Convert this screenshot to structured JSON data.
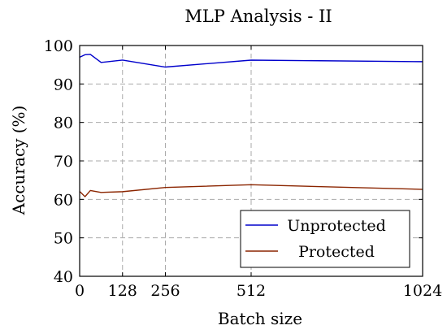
{
  "chart_data": {
    "type": "line",
    "title": "MLP Analysis - II",
    "xlabel": "Batch size",
    "ylabel": "Accuracy (%)",
    "xlim": [
      0,
      1024
    ],
    "ylim": [
      40,
      100
    ],
    "xticks": [
      0,
      128,
      256,
      512,
      1024
    ],
    "yticks": [
      40,
      50,
      60,
      70,
      80,
      90,
      100
    ],
    "grid": true,
    "legend_position": "bottom-right",
    "series": [
      {
        "name": "Unprotected",
        "color": "#0000cc",
        "x": [
          1,
          16,
          32,
          64,
          128,
          256,
          512,
          1024
        ],
        "y": [
          97.0,
          97.6,
          97.7,
          95.6,
          96.2,
          94.4,
          96.2,
          95.8
        ]
      },
      {
        "name": "Protected",
        "color": "#8b2500",
        "x": [
          1,
          16,
          32,
          64,
          128,
          256,
          512,
          1024
        ],
        "y": [
          62.0,
          60.7,
          62.3,
          61.8,
          62.0,
          63.1,
          63.8,
          62.6
        ]
      }
    ]
  }
}
